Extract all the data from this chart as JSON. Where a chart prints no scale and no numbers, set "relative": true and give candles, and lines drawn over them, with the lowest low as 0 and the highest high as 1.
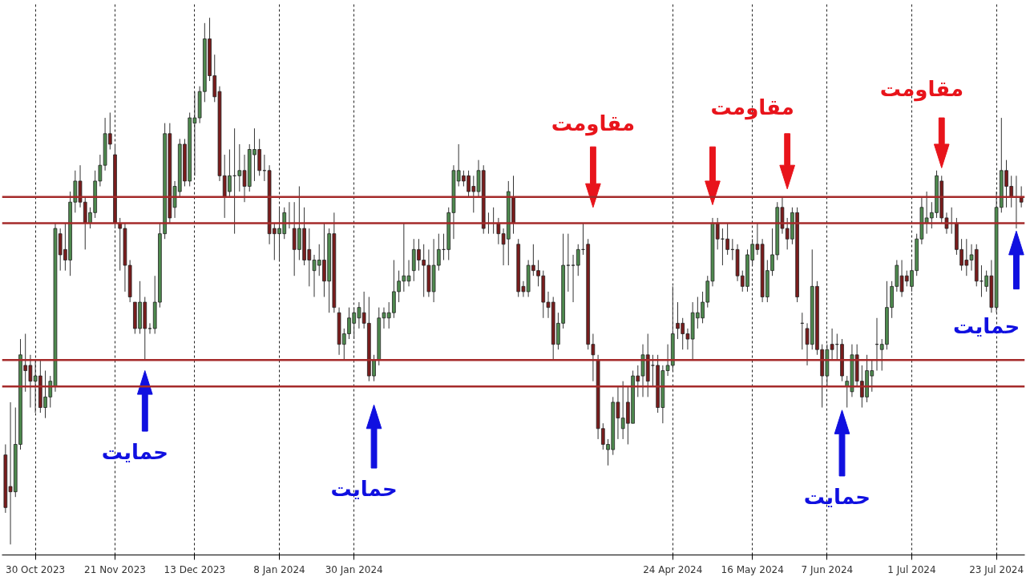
{
  "chart_data": {
    "type": "candlestick",
    "relative": true,
    "grid": "x",
    "annotations": [
      "مقاومت",
      "مقاومت",
      "مقاومت",
      "حمایت",
      "حمایت",
      "حمایت",
      "حمایت"
    ],
    "ref_lines": [
      {
        "axis": "y",
        "value": 0.66,
        "color": "#a52a2a"
      },
      {
        "axis": "y",
        "value": 0.61,
        "color": "#a52a2a"
      },
      {
        "axis": "y",
        "value": 0.35,
        "color": "#a52a2a"
      },
      {
        "axis": "y",
        "value": 0.3,
        "color": "#a52a2a"
      }
    ],
    "categories": [
      null,
      null,
      null,
      null,
      null,
      null,
      "30 Oct 2023",
      null,
      null,
      null,
      null,
      null,
      null,
      null,
      null,
      null,
      null,
      null,
      null,
      null,
      null,
      null,
      "21 Nov 2023",
      null,
      null,
      null,
      null,
      null,
      null,
      null,
      null,
      null,
      null,
      null,
      null,
      null,
      null,
      null,
      "13 Dec 2023",
      null,
      null,
      null,
      null,
      null,
      null,
      null,
      null,
      null,
      null,
      null,
      null,
      null,
      null,
      null,
      null,
      "8 Jan 2024",
      null,
      null,
      null,
      null,
      null,
      null,
      null,
      null,
      null,
      null,
      null,
      null,
      null,
      null,
      "30 Jan 2024",
      null,
      null,
      null,
      null,
      null,
      null,
      null,
      null,
      null,
      null,
      null,
      null,
      null,
      null,
      null,
      null,
      null,
      null,
      null,
      null,
      null,
      null,
      null,
      null,
      null,
      null,
      null,
      null,
      null,
      null,
      null,
      null,
      null,
      null,
      null,
      null,
      null,
      null,
      null,
      null,
      null,
      null,
      null,
      null,
      null,
      null,
      null,
      null,
      null,
      null,
      null,
      null,
      null,
      null,
      null,
      null,
      null,
      null,
      null,
      null,
      null,
      null,
      null,
      "24 Apr 2024",
      null,
      null,
      null,
      null,
      null,
      null,
      null,
      null,
      null,
      null,
      null,
      null,
      null,
      null,
      null,
      "16 May 2024",
      null,
      null,
      null,
      null,
      null,
      null,
      null,
      null,
      null,
      null,
      null,
      null,
      null,
      null,
      "7 Jun 2024",
      null,
      null,
      null,
      null,
      null,
      null,
      null,
      null,
      null,
      null,
      null,
      null,
      null,
      null,
      null,
      null,
      "1 Jul 2024",
      null,
      null,
      null,
      null,
      null,
      null,
      null,
      null,
      null,
      null,
      null,
      null,
      null,
      null,
      null,
      null,
      "23 Jul 2024",
      null,
      null,
      null,
      null,
      null
    ],
    "ohlc": [
      [
        0.17,
        0.19,
        0.06,
        0.07
      ],
      [
        0.11,
        0.27,
        0.0,
        0.1
      ],
      [
        0.1,
        0.26,
        0.09,
        0.19
      ],
      [
        0.19,
        0.39,
        0.18,
        0.36
      ],
      [
        0.34,
        0.4,
        0.29,
        0.33
      ],
      [
        0.34,
        0.36,
        0.26,
        0.31
      ],
      [
        0.31,
        0.35,
        0.25,
        0.32
      ],
      [
        0.32,
        0.35,
        0.25,
        0.26
      ],
      [
        0.26,
        0.33,
        0.24,
        0.28
      ],
      [
        0.28,
        0.32,
        0.26,
        0.31
      ],
      [
        0.3,
        0.61,
        0.29,
        0.6
      ],
      [
        0.59,
        0.6,
        0.52,
        0.55
      ],
      [
        0.56,
        0.61,
        0.52,
        0.54
      ],
      [
        0.54,
        0.67,
        0.51,
        0.65
      ],
      [
        0.65,
        0.71,
        0.63,
        0.69
      ],
      [
        0.69,
        0.72,
        0.64,
        0.65
      ],
      [
        0.65,
        0.66,
        0.56,
        0.61
      ],
      [
        0.61,
        0.64,
        0.6,
        0.63
      ],
      [
        0.63,
        0.71,
        0.62,
        0.69
      ],
      [
        0.69,
        0.74,
        0.68,
        0.72
      ],
      [
        0.72,
        0.81,
        0.71,
        0.78
      ],
      [
        0.78,
        0.82,
        0.75,
        0.76
      ],
      [
        0.74,
        0.76,
        0.6,
        0.61
      ],
      [
        0.61,
        0.62,
        0.52,
        0.6
      ],
      [
        0.6,
        0.61,
        0.48,
        0.53
      ],
      [
        0.53,
        0.54,
        0.46,
        0.47
      ],
      [
        0.46,
        0.46,
        0.4,
        0.41
      ],
      [
        0.41,
        0.5,
        0.4,
        0.46
      ],
      [
        0.46,
        0.47,
        0.35,
        0.41
      ],
      [
        0.41,
        0.42,
        0.4,
        0.41
      ],
      [
        0.41,
        0.51,
        0.4,
        0.46
      ],
      [
        0.46,
        0.61,
        0.45,
        0.59
      ],
      [
        0.59,
        0.8,
        0.58,
        0.78
      ],
      [
        0.78,
        0.8,
        0.61,
        0.62
      ],
      [
        0.64,
        0.69,
        0.62,
        0.68
      ],
      [
        0.67,
        0.77,
        0.66,
        0.76
      ],
      [
        0.76,
        0.77,
        0.68,
        0.69
      ],
      [
        0.69,
        0.82,
        0.68,
        0.81
      ],
      [
        0.8,
        0.86,
        0.7,
        0.81
      ],
      [
        0.81,
        0.87,
        0.8,
        0.86
      ],
      [
        0.86,
        0.99,
        0.84,
        0.96
      ],
      [
        0.96,
        1.0,
        0.88,
        0.89
      ],
      [
        0.89,
        0.93,
        0.84,
        0.85
      ],
      [
        0.86,
        0.87,
        0.69,
        0.7
      ],
      [
        0.7,
        0.74,
        0.62,
        0.66
      ],
      [
        0.67,
        0.75,
        0.66,
        0.7
      ],
      [
        0.7,
        0.79,
        0.59,
        0.7
      ],
      [
        0.7,
        0.76,
        0.67,
        0.71
      ],
      [
        0.71,
        0.74,
        0.65,
        0.68
      ],
      [
        0.68,
        0.76,
        0.67,
        0.75
      ],
      [
        0.74,
        0.79,
        0.69,
        0.75
      ],
      [
        0.75,
        0.77,
        0.7,
        0.71
      ],
      [
        0.71,
        0.74,
        0.69,
        0.71
      ],
      [
        0.71,
        0.72,
        0.57,
        0.59
      ],
      [
        0.6,
        0.61,
        0.54,
        0.59
      ],
      [
        0.59,
        0.64,
        0.54,
        0.6
      ],
      [
        0.59,
        0.64,
        0.58,
        0.63
      ],
      [
        0.61,
        0.65,
        0.6,
        0.61
      ],
      [
        0.6,
        0.65,
        0.51,
        0.56
      ],
      [
        0.56,
        0.68,
        0.54,
        0.6
      ],
      [
        0.6,
        0.64,
        0.53,
        0.54
      ],
      [
        0.56,
        0.6,
        0.49,
        0.54
      ],
      [
        0.52,
        0.55,
        0.47,
        0.54
      ],
      [
        0.53,
        0.57,
        0.51,
        0.54
      ],
      [
        0.54,
        0.61,
        0.47,
        0.5
      ],
      [
        0.5,
        0.6,
        0.44,
        0.59
      ],
      [
        0.59,
        0.63,
        0.44,
        0.45
      ],
      [
        0.44,
        0.45,
        0.36,
        0.38
      ],
      [
        0.38,
        0.41,
        0.35,
        0.4
      ],
      [
        0.4,
        0.45,
        0.39,
        0.43
      ],
      [
        0.42,
        0.45,
        0.39,
        0.44
      ],
      [
        0.43,
        0.46,
        0.41,
        0.45
      ],
      [
        0.44,
        0.48,
        0.41,
        0.42
      ],
      [
        0.42,
        0.47,
        0.31,
        0.32
      ],
      [
        0.32,
        0.36,
        0.31,
        0.35
      ],
      [
        0.35,
        0.45,
        0.34,
        0.43
      ],
      [
        0.43,
        0.45,
        0.41,
        0.44
      ],
      [
        0.43,
        0.46,
        0.41,
        0.44
      ],
      [
        0.44,
        0.54,
        0.43,
        0.48
      ],
      [
        0.48,
        0.52,
        0.46,
        0.5
      ],
      [
        0.5,
        0.61,
        0.48,
        0.51
      ],
      [
        0.5,
        0.54,
        0.49,
        0.51
      ],
      [
        0.52,
        0.58,
        0.5,
        0.56
      ],
      [
        0.56,
        0.58,
        0.52,
        0.54
      ],
      [
        0.54,
        0.57,
        0.47,
        0.53
      ],
      [
        0.53,
        0.56,
        0.47,
        0.48
      ],
      [
        0.48,
        0.58,
        0.46,
        0.53
      ],
      [
        0.53,
        0.59,
        0.52,
        0.56
      ],
      [
        0.56,
        0.59,
        0.54,
        0.56
      ],
      [
        0.56,
        0.64,
        0.54,
        0.63
      ],
      [
        0.63,
        0.72,
        0.58,
        0.71
      ],
      [
        0.69,
        0.76,
        0.68,
        0.71
      ],
      [
        0.7,
        0.71,
        0.68,
        0.69
      ],
      [
        0.7,
        0.71,
        0.66,
        0.67
      ],
      [
        0.68,
        0.7,
        0.63,
        0.67
      ],
      [
        0.67,
        0.73,
        0.66,
        0.71
      ],
      [
        0.71,
        0.72,
        0.59,
        0.6
      ],
      [
        0.61,
        0.63,
        0.59,
        0.61
      ],
      [
        0.61,
        0.64,
        0.59,
        0.61
      ],
      [
        0.61,
        0.62,
        0.57,
        0.59
      ],
      [
        0.59,
        0.6,
        0.53,
        0.57
      ],
      [
        0.58,
        0.69,
        0.53,
        0.67
      ],
      [
        0.66,
        0.7,
        0.59,
        0.61
      ],
      [
        0.57,
        0.58,
        0.47,
        0.48
      ],
      [
        0.49,
        0.5,
        0.47,
        0.48
      ],
      [
        0.48,
        0.54,
        0.47,
        0.53
      ],
      [
        0.53,
        0.57,
        0.51,
        0.52
      ],
      [
        0.52,
        0.54,
        0.49,
        0.51
      ],
      [
        0.51,
        0.52,
        0.43,
        0.46
      ],
      [
        0.46,
        0.48,
        0.43,
        0.45
      ],
      [
        0.46,
        0.47,
        0.35,
        0.38
      ],
      [
        0.38,
        0.44,
        0.37,
        0.42
      ],
      [
        0.42,
        0.59,
        0.41,
        0.53
      ],
      [
        0.53,
        0.59,
        0.48,
        0.53
      ],
      [
        0.53,
        0.55,
        0.46,
        0.53
      ],
      [
        0.53,
        0.57,
        0.51,
        0.56
      ],
      [
        0.56,
        0.61,
        0.55,
        0.56
      ],
      [
        0.57,
        0.58,
        0.37,
        0.38
      ],
      [
        0.38,
        0.4,
        0.31,
        0.36
      ],
      [
        0.35,
        0.36,
        0.2,
        0.22
      ],
      [
        0.22,
        0.23,
        0.18,
        0.19
      ],
      [
        0.18,
        0.2,
        0.15,
        0.19
      ],
      [
        0.18,
        0.28,
        0.17,
        0.27
      ],
      [
        0.27,
        0.3,
        0.2,
        0.24
      ],
      [
        0.22,
        0.31,
        0.2,
        0.24
      ],
      [
        0.27,
        0.3,
        0.19,
        0.23
      ],
      [
        0.23,
        0.33,
        0.23,
        0.32
      ],
      [
        0.32,
        0.34,
        0.28,
        0.31
      ],
      [
        0.32,
        0.38,
        0.28,
        0.36
      ],
      [
        0.36,
        0.4,
        0.28,
        0.31
      ],
      [
        0.34,
        0.36,
        0.3,
        0.34
      ],
      [
        0.34,
        0.36,
        0.25,
        0.26
      ],
      [
        0.26,
        0.34,
        0.23,
        0.33
      ],
      [
        0.33,
        0.38,
        0.32,
        0.34
      ],
      [
        0.34,
        0.49,
        0.33,
        0.4
      ],
      [
        0.42,
        0.46,
        0.39,
        0.41
      ],
      [
        0.42,
        0.43,
        0.37,
        0.4
      ],
      [
        0.4,
        0.41,
        0.37,
        0.39
      ],
      [
        0.39,
        0.46,
        0.35,
        0.44
      ],
      [
        0.43,
        0.47,
        0.41,
        0.44
      ],
      [
        0.43,
        0.48,
        0.42,
        0.46
      ],
      [
        0.46,
        0.51,
        0.45,
        0.5
      ],
      [
        0.5,
        0.62,
        0.49,
        0.61
      ],
      [
        0.61,
        0.62,
        0.56,
        0.58
      ],
      [
        0.58,
        0.6,
        0.53,
        0.58
      ],
      [
        0.58,
        0.61,
        0.55,
        0.56
      ],
      [
        0.56,
        0.58,
        0.54,
        0.56
      ],
      [
        0.56,
        0.57,
        0.5,
        0.51
      ],
      [
        0.51,
        0.52,
        0.48,
        0.49
      ],
      [
        0.49,
        0.56,
        0.48,
        0.55
      ],
      [
        0.54,
        0.58,
        0.53,
        0.57
      ],
      [
        0.57,
        0.61,
        0.55,
        0.56
      ],
      [
        0.57,
        0.58,
        0.46,
        0.47
      ],
      [
        0.47,
        0.54,
        0.46,
        0.52
      ],
      [
        0.52,
        0.6,
        0.51,
        0.55
      ],
      [
        0.55,
        0.65,
        0.54,
        0.64
      ],
      [
        0.64,
        0.66,
        0.59,
        0.6
      ],
      [
        0.6,
        0.62,
        0.56,
        0.58
      ],
      [
        0.58,
        0.64,
        0.57,
        0.63
      ],
      [
        0.63,
        0.64,
        0.46,
        0.47
      ],
      [
        0.42,
        0.44,
        0.37,
        0.42
      ],
      [
        0.41,
        0.42,
        0.34,
        0.38
      ],
      [
        0.38,
        0.56,
        0.37,
        0.49
      ],
      [
        0.49,
        0.5,
        0.36,
        0.37
      ],
      [
        0.37,
        0.38,
        0.26,
        0.32
      ],
      [
        0.32,
        0.38,
        0.3,
        0.37
      ],
      [
        0.38,
        0.41,
        0.35,
        0.37
      ],
      [
        0.38,
        0.4,
        0.35,
        0.38
      ],
      [
        0.38,
        0.39,
        0.31,
        0.32
      ],
      [
        0.3,
        0.32,
        0.26,
        0.31
      ],
      [
        0.29,
        0.38,
        0.28,
        0.36
      ],
      [
        0.36,
        0.38,
        0.3,
        0.31
      ],
      [
        0.31,
        0.34,
        0.26,
        0.28
      ],
      [
        0.28,
        0.36,
        0.27,
        0.33
      ],
      [
        0.32,
        0.35,
        0.29,
        0.33
      ],
      [
        0.38,
        0.43,
        0.33,
        0.38
      ],
      [
        0.37,
        0.39,
        0.33,
        0.38
      ],
      [
        0.38,
        0.5,
        0.37,
        0.45
      ],
      [
        0.45,
        0.5,
        0.43,
        0.49
      ],
      [
        0.49,
        0.54,
        0.48,
        0.53
      ],
      [
        0.51,
        0.54,
        0.47,
        0.48
      ],
      [
        0.51,
        0.52,
        0.49,
        0.5
      ],
      [
        0.49,
        0.54,
        0.48,
        0.52
      ],
      [
        0.52,
        0.59,
        0.51,
        0.58
      ],
      [
        0.58,
        0.66,
        0.57,
        0.64
      ],
      [
        0.61,
        0.67,
        0.59,
        0.62
      ],
      [
        0.62,
        0.65,
        0.6,
        0.63
      ],
      [
        0.63,
        0.71,
        0.62,
        0.7
      ],
      [
        0.69,
        0.7,
        0.61,
        0.62
      ],
      [
        0.62,
        0.63,
        0.59,
        0.6
      ],
      [
        0.61,
        0.64,
        0.59,
        0.61
      ],
      [
        0.61,
        0.62,
        0.55,
        0.56
      ],
      [
        0.56,
        0.58,
        0.52,
        0.53
      ],
      [
        0.54,
        0.58,
        0.51,
        0.53
      ],
      [
        0.54,
        0.57,
        0.52,
        0.55
      ],
      [
        0.56,
        0.57,
        0.49,
        0.5
      ],
      [
        0.5,
        0.53,
        0.47,
        0.5
      ],
      [
        0.49,
        0.52,
        0.48,
        0.51
      ],
      [
        0.51,
        0.54,
        0.44,
        0.45
      ],
      [
        0.45,
        0.67,
        0.44,
        0.64
      ],
      [
        0.64,
        0.81,
        0.63,
        0.71
      ],
      [
        0.71,
        0.73,
        0.64,
        0.68
      ],
      [
        0.68,
        0.7,
        0.64,
        0.66
      ],
      [
        0.66,
        0.7,
        0.6,
        0.66
      ],
      [
        0.66,
        0.68,
        0.64,
        0.65
      ]
    ]
  }
}
